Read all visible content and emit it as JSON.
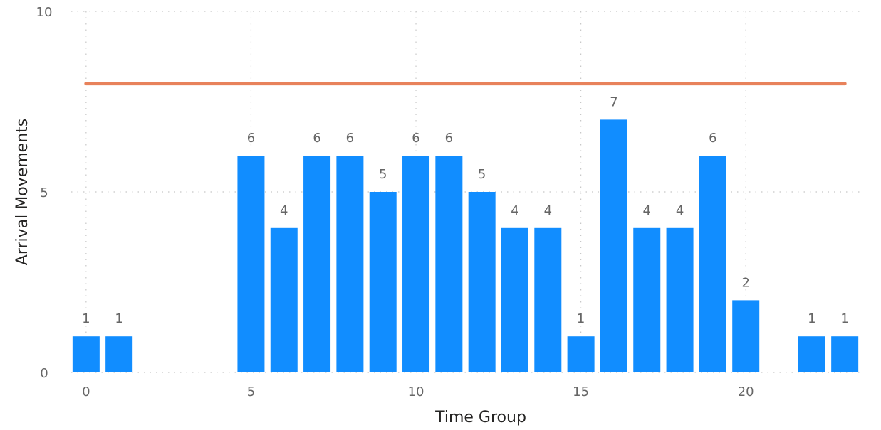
{
  "chart_data": {
    "type": "bar",
    "xlabel": "Time Group",
    "ylabel": "Arrival Movements",
    "x": [
      0,
      1,
      5,
      6,
      7,
      8,
      9,
      10,
      11,
      12,
      13,
      14,
      15,
      16,
      17,
      18,
      19,
      20,
      22,
      23
    ],
    "values": [
      1,
      1,
      6,
      4,
      6,
      6,
      5,
      6,
      6,
      5,
      4,
      4,
      1,
      7,
      4,
      4,
      6,
      2,
      1,
      1
    ],
    "xlim": [
      -0.45,
      23.45
    ],
    "ylim": [
      0,
      10
    ],
    "x_ticks": [
      0,
      5,
      10,
      15,
      20
    ],
    "y_ticks": [
      0,
      5,
      10
    ],
    "reference_line": {
      "value": 8
    },
    "grid": true,
    "colors": {
      "bar": "#118DFF",
      "reference_line": "#E8825B",
      "grid": "#C8C8C8"
    }
  }
}
